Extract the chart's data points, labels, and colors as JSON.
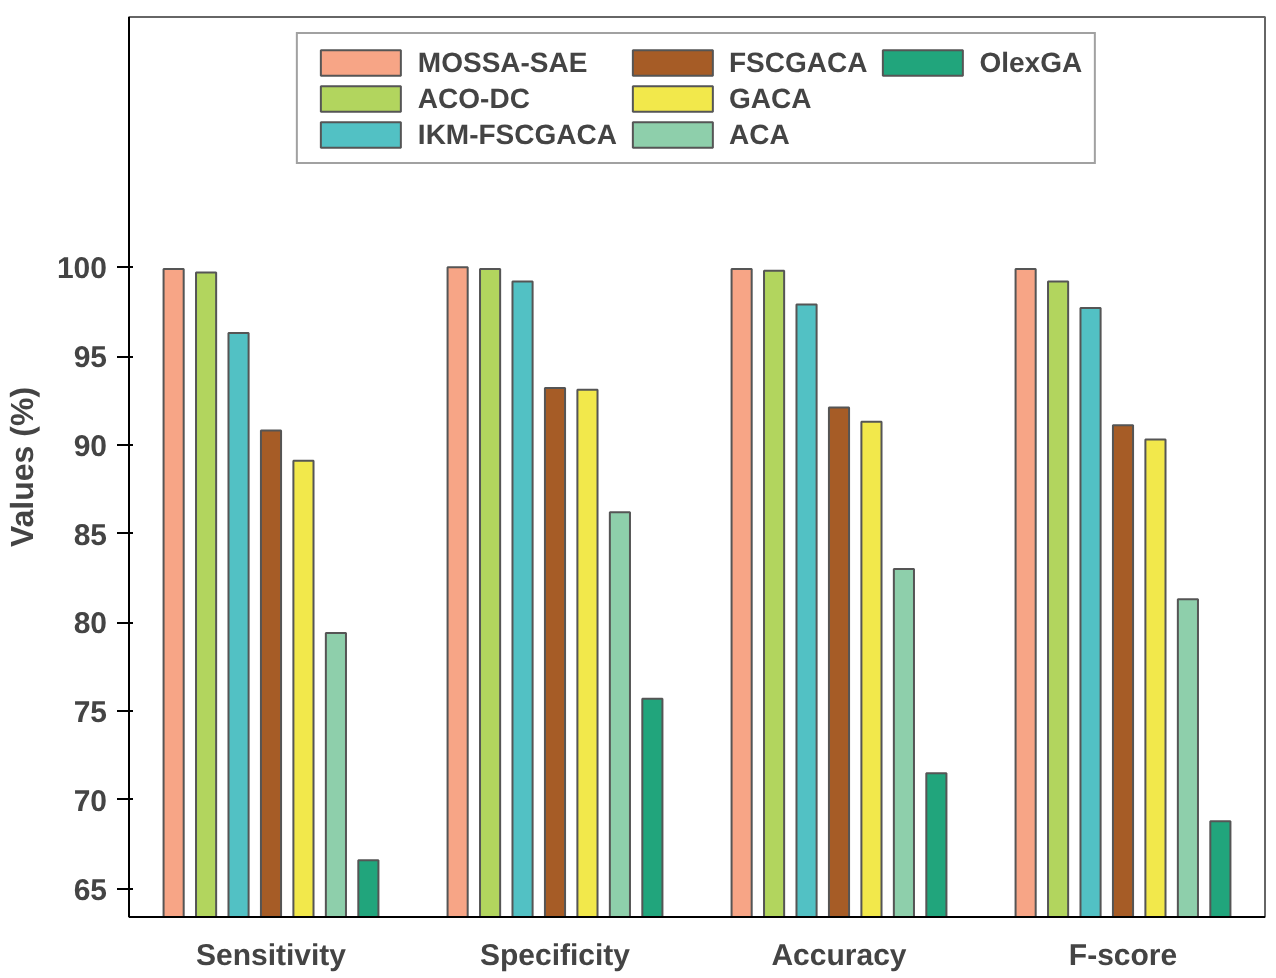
{
  "chart_data": {
    "type": "bar",
    "ylabel": "Values (%)",
    "categories": [
      "Sensitivity",
      "Specificity",
      "Accuracy",
      "F-score"
    ],
    "series": [
      {
        "name": "MOSSA-SAE",
        "color": "#f7a586",
        "values": [
          99.9,
          100,
          99.9,
          99.9
        ]
      },
      {
        "name": "ACO-DC",
        "color": "#b2d55e",
        "values": [
          99.7,
          99.9,
          99.8,
          99.2
        ]
      },
      {
        "name": "IKM-FSCGACA",
        "color": "#52c1c4",
        "values": [
          96.3,
          99.2,
          97.9,
          97.7
        ]
      },
      {
        "name": "FSCGACA",
        "color": "#a65c26",
        "values": [
          90.8,
          93.2,
          92.1,
          91.1
        ]
      },
      {
        "name": "GACA",
        "color": "#f2e84b",
        "values": [
          89.1,
          93.1,
          91.3,
          90.3
        ]
      },
      {
        "name": "ACA",
        "color": "#8ecfab",
        "values": [
          79.4,
          86.2,
          83.0,
          81.3
        ]
      },
      {
        "name": "OlexGA",
        "color": "#21a57c",
        "values": [
          66.6,
          75.7,
          71.5,
          68.8
        ]
      }
    ],
    "ylim": [
      63.4,
      114.1
    ],
    "yticks": [
      65,
      70,
      75,
      80,
      85,
      90,
      95,
      100
    ],
    "grid": false,
    "legend": "top"
  }
}
